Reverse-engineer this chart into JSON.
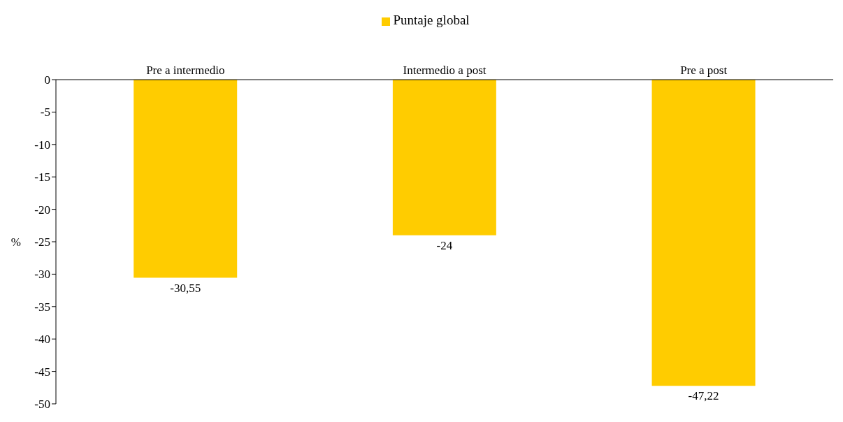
{
  "chart_data": {
    "type": "bar",
    "categories": [
      "Pre a intermedio",
      "Intermedio a post",
      "Pre a post"
    ],
    "series": [
      {
        "name": "Puntaje global",
        "color": "#ffcc00",
        "values": [
          -30.55,
          -24,
          -47.22
        ],
        "value_labels": [
          "-30,55",
          "-24",
          "-47,22"
        ]
      }
    ],
    "ylabel": "%",
    "ylim": [
      -50,
      0
    ],
    "yticks": [
      0,
      -5,
      -10,
      -15,
      -20,
      -25,
      -30,
      -35,
      -40,
      -45,
      -50
    ],
    "grid": false,
    "legend": "top"
  }
}
